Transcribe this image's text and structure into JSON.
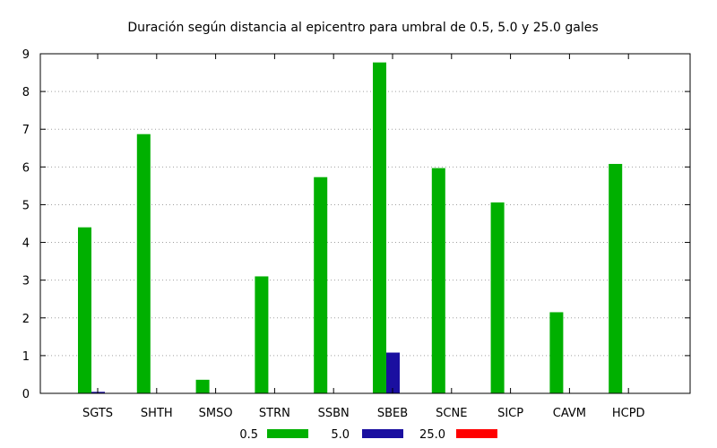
{
  "chart_data": {
    "type": "bar",
    "title": "Duración según distancia al epicentro para umbral de 0.5, 5.0 y 25.0 gales",
    "xlabel": "",
    "ylabel": "",
    "ylim": [
      0,
      9
    ],
    "yticks": [
      "0",
      "1",
      "2",
      "3",
      "4",
      "5",
      "6",
      "7",
      "8",
      "9"
    ],
    "grid": true,
    "legend_position": "bottom",
    "categories": [
      "SGTS",
      "SHTH",
      "SMSO",
      "STRN",
      "SSBN",
      "SBEB",
      "SCNE",
      "SICP",
      "CAVM",
      "HCPD"
    ],
    "series": [
      {
        "name": "0.5",
        "color": "#00b000",
        "values": [
          4.4,
          6.87,
          0.36,
          3.1,
          5.73,
          8.77,
          5.97,
          5.06,
          2.15,
          6.08
        ]
      },
      {
        "name": "5.0",
        "color": "#1a0fa0",
        "values": [
          0.04,
          0,
          0,
          0,
          0,
          1.08,
          0,
          0,
          0,
          0
        ]
      },
      {
        "name": "25.0",
        "color": "#ff0000",
        "values": [
          0,
          0,
          0,
          0,
          0,
          0,
          0,
          0,
          0,
          0
        ]
      }
    ]
  }
}
